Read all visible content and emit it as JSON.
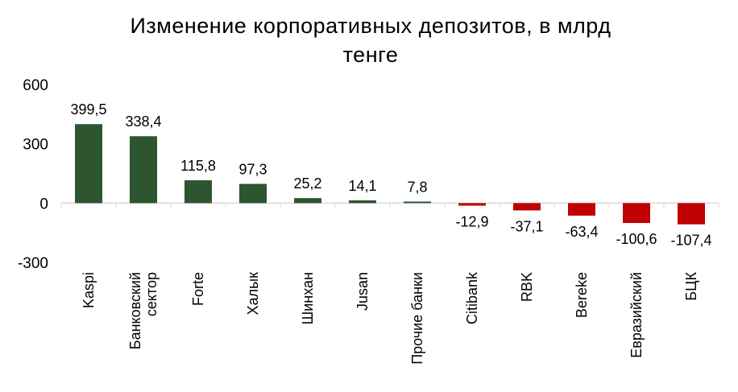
{
  "chart_data": {
    "type": "bar",
    "title": "Изменение корпоративных депозитов, в млрд тенге",
    "title_lines": [
      "Изменение корпоративных депозитов, в млрд",
      "тенге"
    ],
    "xlabel": "",
    "ylabel": "",
    "ylim": [
      -300,
      600
    ],
    "yticks": [
      600,
      300,
      0,
      -300
    ],
    "ytick_labels": [
      "600",
      "300",
      "0",
      "-300"
    ],
    "grid": false,
    "categories": [
      [
        "Kaspi"
      ],
      [
        "Банковский",
        "сектор"
      ],
      [
        "Forte"
      ],
      [
        "Халык"
      ],
      [
        "Шинхан"
      ],
      [
        "Jusan"
      ],
      [
        "Прочие банки"
      ],
      [
        "Citibank"
      ],
      [
        "RBK"
      ],
      [
        "Bereke"
      ],
      [
        "Евразийский"
      ],
      [
        "БЦК"
      ]
    ],
    "values": [
      399.5,
      338.4,
      115.8,
      97.3,
      25.2,
      14.1,
      7.8,
      -12.9,
      -37.1,
      -63.4,
      -100.6,
      -107.4
    ],
    "value_labels": [
      "399,5",
      "338,4",
      "115,8",
      "97,3",
      "25,2",
      "14,1",
      "7,8",
      "-12,9",
      "-37,1",
      "-63,4",
      "-100,6",
      "-107,4"
    ],
    "colors": {
      "positive": "#2d5530",
      "negative": "#c00000",
      "axis": "#d9d9d9"
    }
  }
}
